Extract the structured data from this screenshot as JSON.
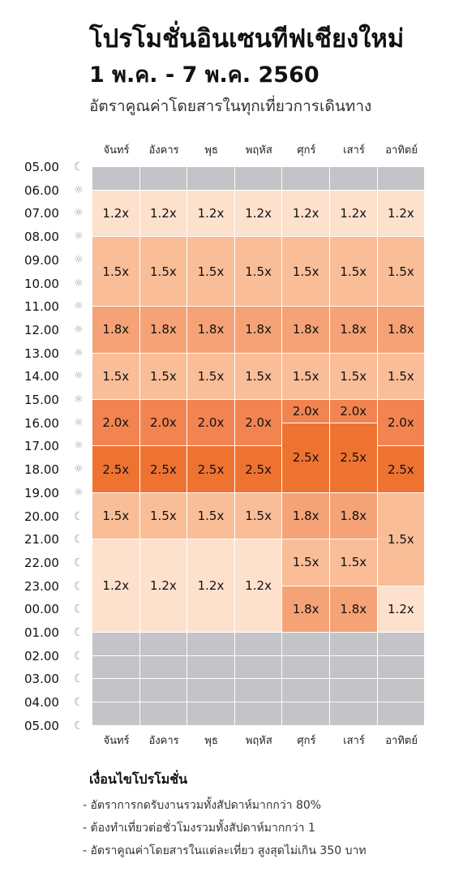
{
  "header": {
    "title": "โปรโมชั่นอินเซนทีฟเชียงใหม่",
    "subtitle": "1 พ.ค. - 7 พ.ค. 2560",
    "tagline": "อัตราคูณค่าโดยสารในทุกเที่ยวการเดินทาง"
  },
  "days": [
    "จันทร์",
    "อังคาร",
    "พุธ",
    "พฤหัส",
    "ศุกร์",
    "เสาร์",
    "อาทิตย์"
  ],
  "times": [
    {
      "label": "05.00",
      "icon": "moon-icon"
    },
    {
      "label": "06.00",
      "icon": "sun-icon"
    },
    {
      "label": "07.00",
      "icon": "sun-icon"
    },
    {
      "label": "08.00",
      "icon": "sun-icon"
    },
    {
      "label": "09.00",
      "icon": "sun-icon"
    },
    {
      "label": "10.00",
      "icon": "sun-icon"
    },
    {
      "label": "11.00",
      "icon": "sun-icon"
    },
    {
      "label": "12.00",
      "icon": "sun-icon"
    },
    {
      "label": "13.00",
      "icon": "sun-icon"
    },
    {
      "label": "14.00",
      "icon": "sun-icon"
    },
    {
      "label": "15.00",
      "icon": "sun-icon"
    },
    {
      "label": "16.00",
      "icon": "sun-icon"
    },
    {
      "label": "17.00",
      "icon": "sun-icon"
    },
    {
      "label": "18.00",
      "icon": "sun-icon"
    },
    {
      "label": "19.00",
      "icon": "sun-icon"
    },
    {
      "label": "20.00",
      "icon": "moon-icon"
    },
    {
      "label": "21.00",
      "icon": "moon-icon"
    },
    {
      "label": "22.00",
      "icon": "moon-icon"
    },
    {
      "label": "23.00",
      "icon": "moon-icon"
    },
    {
      "label": "00.00",
      "icon": "moon-icon"
    },
    {
      "label": "01.00",
      "icon": "moon-icon"
    },
    {
      "label": "02.00",
      "icon": "moon-icon"
    },
    {
      "label": "03.00",
      "icon": "moon-icon"
    },
    {
      "label": "04.00",
      "icon": "moon-icon"
    },
    {
      "label": "05.00",
      "icon": "moon-icon"
    }
  ],
  "rate_colors": {
    "none": "#c3c3c8",
    "1.2x": "#fde1cd",
    "1.5x": "#f9bd98",
    "1.8x": "#f5a277",
    "2.0x": "#f18450",
    "2.5x": "#ee7331"
  },
  "schedule": [
    {
      "day": 0,
      "blocks": [
        {
          "start": 0,
          "end": 1,
          "rate": ""
        },
        {
          "start": 1,
          "end": 3,
          "rate": "1.2x"
        },
        {
          "start": 3,
          "end": 6,
          "rate": "1.5x"
        },
        {
          "start": 6,
          "end": 8,
          "rate": "1.8x"
        },
        {
          "start": 8,
          "end": 10,
          "rate": "1.5x"
        },
        {
          "start": 10,
          "end": 12,
          "rate": "2.0x"
        },
        {
          "start": 12,
          "end": 14,
          "rate": "2.5x"
        },
        {
          "start": 14,
          "end": 16,
          "rate": "1.5x"
        },
        {
          "start": 16,
          "end": 20,
          "rate": "1.2x"
        },
        {
          "start": 20,
          "end": 21,
          "rate": ""
        },
        {
          "start": 21,
          "end": 22,
          "rate": ""
        },
        {
          "start": 22,
          "end": 23,
          "rate": ""
        },
        {
          "start": 23,
          "end": 24,
          "rate": ""
        }
      ]
    },
    {
      "day": 1,
      "blocks": [
        {
          "start": 0,
          "end": 1,
          "rate": ""
        },
        {
          "start": 1,
          "end": 3,
          "rate": "1.2x"
        },
        {
          "start": 3,
          "end": 6,
          "rate": "1.5x"
        },
        {
          "start": 6,
          "end": 8,
          "rate": "1.8x"
        },
        {
          "start": 8,
          "end": 10,
          "rate": "1.5x"
        },
        {
          "start": 10,
          "end": 12,
          "rate": "2.0x"
        },
        {
          "start": 12,
          "end": 14,
          "rate": "2.5x"
        },
        {
          "start": 14,
          "end": 16,
          "rate": "1.5x"
        },
        {
          "start": 16,
          "end": 20,
          "rate": "1.2x"
        },
        {
          "start": 20,
          "end": 21,
          "rate": ""
        },
        {
          "start": 21,
          "end": 22,
          "rate": ""
        },
        {
          "start": 22,
          "end": 23,
          "rate": ""
        },
        {
          "start": 23,
          "end": 24,
          "rate": ""
        }
      ]
    },
    {
      "day": 2,
      "blocks": [
        {
          "start": 0,
          "end": 1,
          "rate": ""
        },
        {
          "start": 1,
          "end": 3,
          "rate": "1.2x"
        },
        {
          "start": 3,
          "end": 6,
          "rate": "1.5x"
        },
        {
          "start": 6,
          "end": 8,
          "rate": "1.8x"
        },
        {
          "start": 8,
          "end": 10,
          "rate": "1.5x"
        },
        {
          "start": 10,
          "end": 12,
          "rate": "2.0x"
        },
        {
          "start": 12,
          "end": 14,
          "rate": "2.5x"
        },
        {
          "start": 14,
          "end": 16,
          "rate": "1.5x"
        },
        {
          "start": 16,
          "end": 20,
          "rate": "1.2x"
        },
        {
          "start": 20,
          "end": 21,
          "rate": ""
        },
        {
          "start": 21,
          "end": 22,
          "rate": ""
        },
        {
          "start": 22,
          "end": 23,
          "rate": ""
        },
        {
          "start": 23,
          "end": 24,
          "rate": ""
        }
      ]
    },
    {
      "day": 3,
      "blocks": [
        {
          "start": 0,
          "end": 1,
          "rate": ""
        },
        {
          "start": 1,
          "end": 3,
          "rate": "1.2x"
        },
        {
          "start": 3,
          "end": 6,
          "rate": "1.5x"
        },
        {
          "start": 6,
          "end": 8,
          "rate": "1.8x"
        },
        {
          "start": 8,
          "end": 10,
          "rate": "1.5x"
        },
        {
          "start": 10,
          "end": 12,
          "rate": "2.0x"
        },
        {
          "start": 12,
          "end": 14,
          "rate": "2.5x"
        },
        {
          "start": 14,
          "end": 16,
          "rate": "1.5x"
        },
        {
          "start": 16,
          "end": 20,
          "rate": "1.2x"
        },
        {
          "start": 20,
          "end": 21,
          "rate": ""
        },
        {
          "start": 21,
          "end": 22,
          "rate": ""
        },
        {
          "start": 22,
          "end": 23,
          "rate": ""
        },
        {
          "start": 23,
          "end": 24,
          "rate": ""
        }
      ]
    },
    {
      "day": 4,
      "blocks": [
        {
          "start": 0,
          "end": 1,
          "rate": ""
        },
        {
          "start": 1,
          "end": 3,
          "rate": "1.2x"
        },
        {
          "start": 3,
          "end": 6,
          "rate": "1.5x"
        },
        {
          "start": 6,
          "end": 8,
          "rate": "1.8x"
        },
        {
          "start": 8,
          "end": 10,
          "rate": "1.5x"
        },
        {
          "start": 10,
          "end": 11,
          "rate": "2.0x"
        },
        {
          "start": 11,
          "end": 14,
          "rate": "2.5x"
        },
        {
          "start": 14,
          "end": 16,
          "rate": "1.8x"
        },
        {
          "start": 16,
          "end": 18,
          "rate": "1.5x"
        },
        {
          "start": 18,
          "end": 20,
          "rate": "1.8x"
        },
        {
          "start": 20,
          "end": 21,
          "rate": ""
        },
        {
          "start": 21,
          "end": 22,
          "rate": ""
        },
        {
          "start": 22,
          "end": 23,
          "rate": ""
        },
        {
          "start": 23,
          "end": 24,
          "rate": ""
        }
      ]
    },
    {
      "day": 5,
      "blocks": [
        {
          "start": 0,
          "end": 1,
          "rate": ""
        },
        {
          "start": 1,
          "end": 3,
          "rate": "1.2x"
        },
        {
          "start": 3,
          "end": 6,
          "rate": "1.5x"
        },
        {
          "start": 6,
          "end": 8,
          "rate": "1.8x"
        },
        {
          "start": 8,
          "end": 10,
          "rate": "1.5x"
        },
        {
          "start": 10,
          "end": 11,
          "rate": "2.0x"
        },
        {
          "start": 11,
          "end": 14,
          "rate": "2.5x"
        },
        {
          "start": 14,
          "end": 16,
          "rate": "1.8x"
        },
        {
          "start": 16,
          "end": 18,
          "rate": "1.5x"
        },
        {
          "start": 18,
          "end": 20,
          "rate": "1.8x"
        },
        {
          "start": 20,
          "end": 21,
          "rate": ""
        },
        {
          "start": 21,
          "end": 22,
          "rate": ""
        },
        {
          "start": 22,
          "end": 23,
          "rate": ""
        },
        {
          "start": 23,
          "end": 24,
          "rate": ""
        }
      ]
    },
    {
      "day": 6,
      "blocks": [
        {
          "start": 0,
          "end": 1,
          "rate": ""
        },
        {
          "start": 1,
          "end": 3,
          "rate": "1.2x"
        },
        {
          "start": 3,
          "end": 6,
          "rate": "1.5x"
        },
        {
          "start": 6,
          "end": 8,
          "rate": "1.8x"
        },
        {
          "start": 8,
          "end": 10,
          "rate": "1.5x"
        },
        {
          "start": 10,
          "end": 12,
          "rate": "2.0x"
        },
        {
          "start": 12,
          "end": 14,
          "rate": "2.5x"
        },
        {
          "start": 14,
          "end": 18,
          "rate": "1.5x"
        },
        {
          "start": 18,
          "end": 20,
          "rate": "1.2x"
        },
        {
          "start": 20,
          "end": 21,
          "rate": ""
        },
        {
          "start": 21,
          "end": 22,
          "rate": ""
        },
        {
          "start": 22,
          "end": 23,
          "rate": ""
        },
        {
          "start": 23,
          "end": 24,
          "rate": ""
        }
      ]
    }
  ],
  "conditions": {
    "title": "เงื่อนไขโปรโมชั่น",
    "items": [
      "- อัตราการกดรับงานรวมทั้งสัปดาห์มากกว่า 80%",
      "- ต้องทำเที่ยวต่อชั่วโมงรวมทั้งสัปดาห์มากกว่า 1",
      "- อัตราคูณค่าโดยสารในแต่ละเที่ยว สูงสุดไม่เกิน 350 บาท"
    ]
  }
}
